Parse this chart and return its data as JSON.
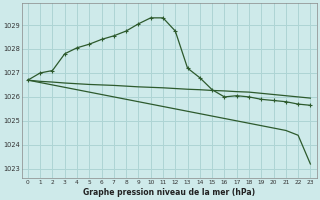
{
  "xlabel": "Graphe pression niveau de la mer (hPa)",
  "background_color": "#ceeaea",
  "grid_color": "#add4d4",
  "line_color": "#2d5a2d",
  "xlim": [
    -0.5,
    23.5
  ],
  "ylim": [
    1022.6,
    1029.9
  ],
  "yticks": [
    1023,
    1024,
    1025,
    1026,
    1027,
    1028,
    1029
  ],
  "xticks": [
    0,
    1,
    2,
    3,
    4,
    5,
    6,
    7,
    8,
    9,
    10,
    11,
    12,
    13,
    14,
    15,
    16,
    17,
    18,
    19,
    20,
    21,
    22,
    23
  ],
  "series_bell_x": [
    0,
    1,
    2,
    3,
    4,
    5,
    6,
    7,
    8,
    9,
    10,
    11,
    12,
    13,
    14,
    15,
    16,
    17,
    18,
    19,
    20,
    21,
    22,
    23
  ],
  "series_bell_y": [
    1026.7,
    1027.0,
    1027.1,
    1027.8,
    1028.05,
    1028.2,
    1028.4,
    1028.55,
    1028.75,
    1029.05,
    1029.3,
    1029.3,
    1028.75,
    1027.2,
    1026.8,
    1026.3,
    1026.0,
    1026.05,
    1026.0,
    1025.9,
    1025.85,
    1025.8,
    1025.7,
    1025.65
  ],
  "series_diag_x": [
    0,
    1,
    2,
    3,
    4,
    5,
    6,
    7,
    8,
    9,
    10,
    11,
    12,
    13,
    14,
    15,
    16,
    17,
    18,
    19,
    20,
    21,
    22,
    23
  ],
  "series_diag_y": [
    1026.7,
    1026.6,
    1026.5,
    1026.4,
    1026.3,
    1026.2,
    1026.1,
    1026.0,
    1025.9,
    1025.8,
    1025.7,
    1025.6,
    1025.5,
    1025.4,
    1025.3,
    1025.2,
    1025.1,
    1025.0,
    1024.9,
    1024.8,
    1024.7,
    1024.6,
    1024.4,
    1023.2
  ],
  "series_flat_x": [
    0,
    1,
    2,
    3,
    4,
    5,
    6,
    7,
    8,
    9,
    10,
    11,
    12,
    13,
    14,
    15,
    16,
    17,
    18,
    19,
    20,
    21,
    22,
    23
  ],
  "series_flat_y": [
    1026.7,
    1026.65,
    1026.62,
    1026.58,
    1026.55,
    1026.52,
    1026.5,
    1026.48,
    1026.45,
    1026.42,
    1026.4,
    1026.38,
    1026.35,
    1026.32,
    1026.3,
    1026.27,
    1026.25,
    1026.22,
    1026.2,
    1026.15,
    1026.1,
    1026.05,
    1026.0,
    1025.95
  ]
}
